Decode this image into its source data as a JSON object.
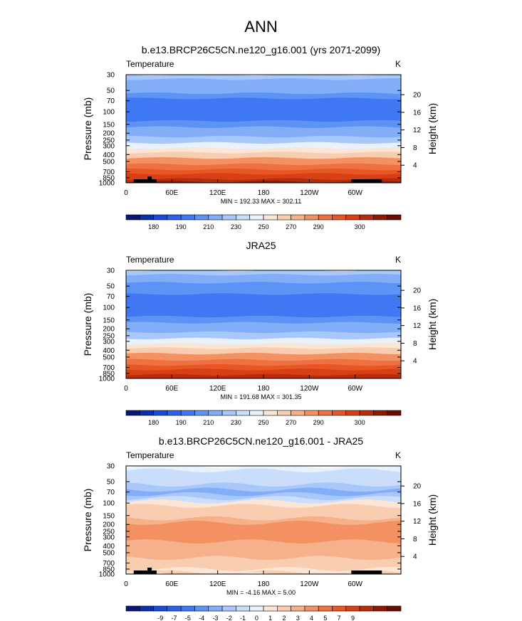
{
  "page_title": "ANN",
  "chart_data": [
    {
      "type": "heatmap",
      "title": "b.e13.BRCP26C5CN.ne120_g16.001 (yrs 2071-2099)",
      "variable": "Temperature",
      "units": "K",
      "ylabel": "Pressure (mb)",
      "ylabel_right": "Height (km)",
      "x_ticks": [
        "0",
        "60E",
        "120E",
        "180",
        "120W",
        "60W"
      ],
      "x_tick_lon": [
        0,
        60,
        120,
        180,
        240,
        300
      ],
      "xlim": [
        0,
        360
      ],
      "y_ticks": [
        "30",
        "50",
        "70",
        "100",
        "150",
        "200",
        "250",
        "300",
        "400",
        "500",
        "700",
        "850",
        "1000"
      ],
      "y_tick_values": [
        30,
        50,
        70,
        100,
        150,
        200,
        250,
        300,
        400,
        500,
        700,
        850,
        1000
      ],
      "y_scale": "log",
      "ylim": [
        1000,
        30
      ],
      "height_ticks": [
        "4",
        "8",
        "12",
        "16",
        "20"
      ],
      "height_km": [
        4,
        8,
        12,
        16,
        20
      ],
      "stats": "MIN = 192.33  MAX = 302.11",
      "min": 192.33,
      "max": 302.11,
      "profile": [
        {
          "p": 30,
          "value": 222
        },
        {
          "p": 40,
          "value": 218
        },
        {
          "p": 50,
          "value": 214
        },
        {
          "p": 60,
          "value": 210
        },
        {
          "p": 70,
          "value": 207
        },
        {
          "p": 85,
          "value": 205
        },
        {
          "p": 100,
          "value": 204
        },
        {
          "p": 120,
          "value": 206
        },
        {
          "p": 150,
          "value": 211
        },
        {
          "p": 180,
          "value": 216
        },
        {
          "p": 200,
          "value": 219
        },
        {
          "p": 250,
          "value": 226
        },
        {
          "p": 300,
          "value": 236
        },
        {
          "p": 350,
          "value": 245
        },
        {
          "p": 400,
          "value": 252
        },
        {
          "p": 500,
          "value": 261
        },
        {
          "p": 600,
          "value": 269
        },
        {
          "p": 700,
          "value": 275
        },
        {
          "p": 800,
          "value": 281
        },
        {
          "p": 850,
          "value": 284
        },
        {
          "p": 925,
          "value": 288
        },
        {
          "p": 1000,
          "value": 292
        }
      ],
      "colorbar": {
        "labels": [
          "180",
          "190",
          "210",
          "230",
          "250",
          "270",
          "290",
          "300"
        ],
        "colors": [
          "#08167a",
          "#0c2fb0",
          "#1a4ad6",
          "#2a62ea",
          "#3f78f2",
          "#5e93f6",
          "#82aef8",
          "#a8c8fb",
          "#cadefc",
          "#e9f1fd",
          "#fbe6d6",
          "#f9cdb0",
          "#f6b08a",
          "#f39163",
          "#ef7040",
          "#e85624",
          "#d74014",
          "#b72c0c",
          "#8e1804",
          "#6a0c02"
        ]
      }
    },
    {
      "type": "heatmap",
      "title": "JRA25",
      "variable": "Temperature",
      "units": "K",
      "ylabel": "Pressure (mb)",
      "ylabel_right": "Height (km)",
      "x_ticks": [
        "0",
        "60E",
        "120E",
        "180",
        "120W",
        "60W"
      ],
      "x_tick_lon": [
        0,
        60,
        120,
        180,
        240,
        300
      ],
      "xlim": [
        0,
        360
      ],
      "y_ticks": [
        "30",
        "50",
        "70",
        "100",
        "150",
        "200",
        "250",
        "300",
        "400",
        "500",
        "700",
        "850",
        "1000"
      ],
      "y_tick_values": [
        30,
        50,
        70,
        100,
        150,
        200,
        250,
        300,
        400,
        500,
        700,
        850,
        1000
      ],
      "y_scale": "log",
      "ylim": [
        1000,
        30
      ],
      "height_ticks": [
        "4",
        "8",
        "12",
        "16",
        "20"
      ],
      "height_km": [
        4,
        8,
        12,
        16,
        20
      ],
      "stats": "MIN = 191.68  MAX = 301.35",
      "min": 191.68,
      "max": 301.35,
      "profile": [
        {
          "p": 30,
          "value": 221
        },
        {
          "p": 40,
          "value": 217
        },
        {
          "p": 50,
          "value": 213
        },
        {
          "p": 60,
          "value": 209
        },
        {
          "p": 70,
          "value": 206
        },
        {
          "p": 85,
          "value": 204
        },
        {
          "p": 100,
          "value": 203
        },
        {
          "p": 120,
          "value": 205
        },
        {
          "p": 150,
          "value": 210
        },
        {
          "p": 180,
          "value": 215
        },
        {
          "p": 200,
          "value": 218
        },
        {
          "p": 250,
          "value": 225
        },
        {
          "p": 300,
          "value": 235
        },
        {
          "p": 350,
          "value": 244
        },
        {
          "p": 400,
          "value": 251
        },
        {
          "p": 500,
          "value": 260
        },
        {
          "p": 600,
          "value": 268
        },
        {
          "p": 700,
          "value": 274
        },
        {
          "p": 800,
          "value": 280
        },
        {
          "p": 850,
          "value": 283
        },
        {
          "p": 925,
          "value": 287
        },
        {
          "p": 1000,
          "value": 291
        }
      ],
      "colorbar": {
        "labels": [
          "180",
          "190",
          "210",
          "230",
          "250",
          "270",
          "290",
          "300"
        ],
        "colors": [
          "#08167a",
          "#0c2fb0",
          "#1a4ad6",
          "#2a62ea",
          "#3f78f2",
          "#5e93f6",
          "#82aef8",
          "#a8c8fb",
          "#cadefc",
          "#e9f1fd",
          "#fbe6d6",
          "#f9cdb0",
          "#f6b08a",
          "#f39163",
          "#ef7040",
          "#e85624",
          "#d74014",
          "#b72c0c",
          "#8e1804",
          "#6a0c02"
        ]
      }
    },
    {
      "type": "heatmap",
      "title": "b.e13.BRCP26C5CN.ne120_g16.001 - JRA25",
      "variable": "Temperature",
      "units": "K",
      "ylabel": "Pressure (mb)",
      "ylabel_right": "Height (km)",
      "x_ticks": [
        "0",
        "60E",
        "120E",
        "180",
        "120W",
        "60W"
      ],
      "x_tick_lon": [
        0,
        60,
        120,
        180,
        240,
        300
      ],
      "xlim": [
        0,
        360
      ],
      "y_ticks": [
        "30",
        "50",
        "70",
        "100",
        "150",
        "200",
        "250",
        "300",
        "400",
        "500",
        "700",
        "850",
        "1000"
      ],
      "y_tick_values": [
        30,
        50,
        70,
        100,
        150,
        200,
        250,
        300,
        400,
        500,
        700,
        850,
        1000
      ],
      "y_scale": "log",
      "ylim": [
        1000,
        30
      ],
      "height_ticks": [
        "4",
        "8",
        "12",
        "16",
        "20"
      ],
      "height_km": [
        4,
        8,
        12,
        16,
        20
      ],
      "stats": "MIN = -4.16  MAX =  5.00",
      "min": -4.16,
      "max": 5.0,
      "profile": [
        {
          "p": 30,
          "value": -0.6
        },
        {
          "p": 40,
          "value": -1.1
        },
        {
          "p": 50,
          "value": -1.8
        },
        {
          "p": 60,
          "value": -2.4
        },
        {
          "p": 70,
          "value": -3.2
        },
        {
          "p": 80,
          "value": -2.6
        },
        {
          "p": 90,
          "value": -1.2
        },
        {
          "p": 100,
          "value": 0.4
        },
        {
          "p": 120,
          "value": 1.2
        },
        {
          "p": 150,
          "value": 1.8
        },
        {
          "p": 180,
          "value": 2.4
        },
        {
          "p": 200,
          "value": 3.1
        },
        {
          "p": 250,
          "value": 3.3
        },
        {
          "p": 300,
          "value": 3.2
        },
        {
          "p": 400,
          "value": 2.5
        },
        {
          "p": 500,
          "value": 2.1
        },
        {
          "p": 700,
          "value": 1.8
        },
        {
          "p": 800,
          "value": 1.5
        },
        {
          "p": 900,
          "value": 0.8
        },
        {
          "p": 1000,
          "value": 1.2
        }
      ],
      "colorbar": {
        "labels": [
          "-9",
          "-7",
          "-5",
          "-4",
          "-3",
          "-2",
          "-1",
          "0",
          "1",
          "2",
          "3",
          "4",
          "5",
          "7",
          "9"
        ],
        "colors": [
          "#08167a",
          "#0c2fb0",
          "#1a4ad6",
          "#2a62ea",
          "#3f78f2",
          "#5e93f6",
          "#82aef8",
          "#a8c8fb",
          "#cadefc",
          "#e9f1fd",
          "#fbe6d6",
          "#f9cdb0",
          "#f6b08a",
          "#f39163",
          "#ef7040",
          "#e85624",
          "#d74014",
          "#b72c0c",
          "#8e1804",
          "#6a0c02"
        ]
      }
    }
  ]
}
